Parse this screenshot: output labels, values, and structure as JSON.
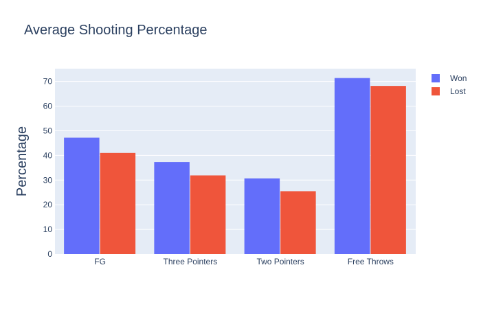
{
  "colors": {
    "won": "#636efa",
    "lost": "#ef553b",
    "plot_bg": "#e5ecf6",
    "grid": "#ffffff",
    "text": "#2a3f5f"
  },
  "chart_data": {
    "type": "bar",
    "title": "Average Shooting Percentage",
    "xlabel": "",
    "ylabel": "Percentage",
    "categories": [
      "FG",
      "Three Pointers",
      "Two Pointers",
      "Free Throws"
    ],
    "series": [
      {
        "name": "Won",
        "values": [
          47.2,
          37.3,
          30.7,
          71.4
        ]
      },
      {
        "name": "Lost",
        "values": [
          41.0,
          31.9,
          25.5,
          68.2
        ]
      }
    ],
    "ylim": [
      0,
      75.2
    ],
    "yticks": [
      0,
      10,
      20,
      30,
      40,
      50,
      60,
      70
    ],
    "grid": true,
    "legend_position": "top-right"
  }
}
